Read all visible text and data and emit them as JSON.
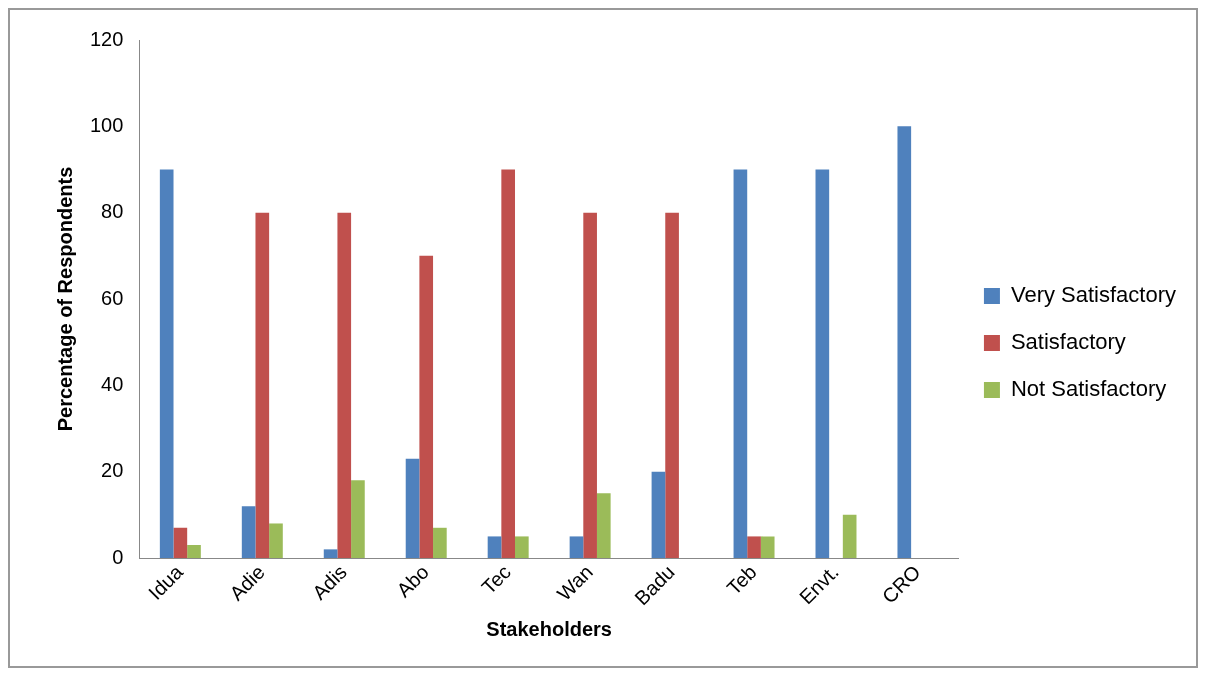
{
  "chart_data": {
    "type": "bar",
    "xlabel": "Stakeholders",
    "ylabel": "Percentage of Respondents",
    "categories": [
      "Idua",
      "Adie",
      "Adis",
      "Abo",
      "Tec",
      "Wan",
      "Badu",
      "Teb",
      "Envt.",
      "CRO"
    ],
    "series": [
      {
        "name": "Very Satisfactory",
        "color": "#4f81bd",
        "values": [
          90,
          12,
          2,
          23,
          5,
          5,
          20,
          90,
          90,
          100
        ]
      },
      {
        "name": "Satisfactory",
        "color": "#c0504d",
        "values": [
          7,
          80,
          80,
          70,
          90,
          80,
          80,
          5,
          0,
          0
        ]
      },
      {
        "name": "Not Satisfactory",
        "color": "#9bbb59",
        "values": [
          3,
          8,
          18,
          7,
          5,
          15,
          0,
          5,
          10,
          0
        ]
      }
    ],
    "ylim": [
      0,
      120
    ],
    "yticks": [
      0,
      20,
      40,
      60,
      80,
      100,
      120
    ],
    "grid": false,
    "legend": "right"
  }
}
